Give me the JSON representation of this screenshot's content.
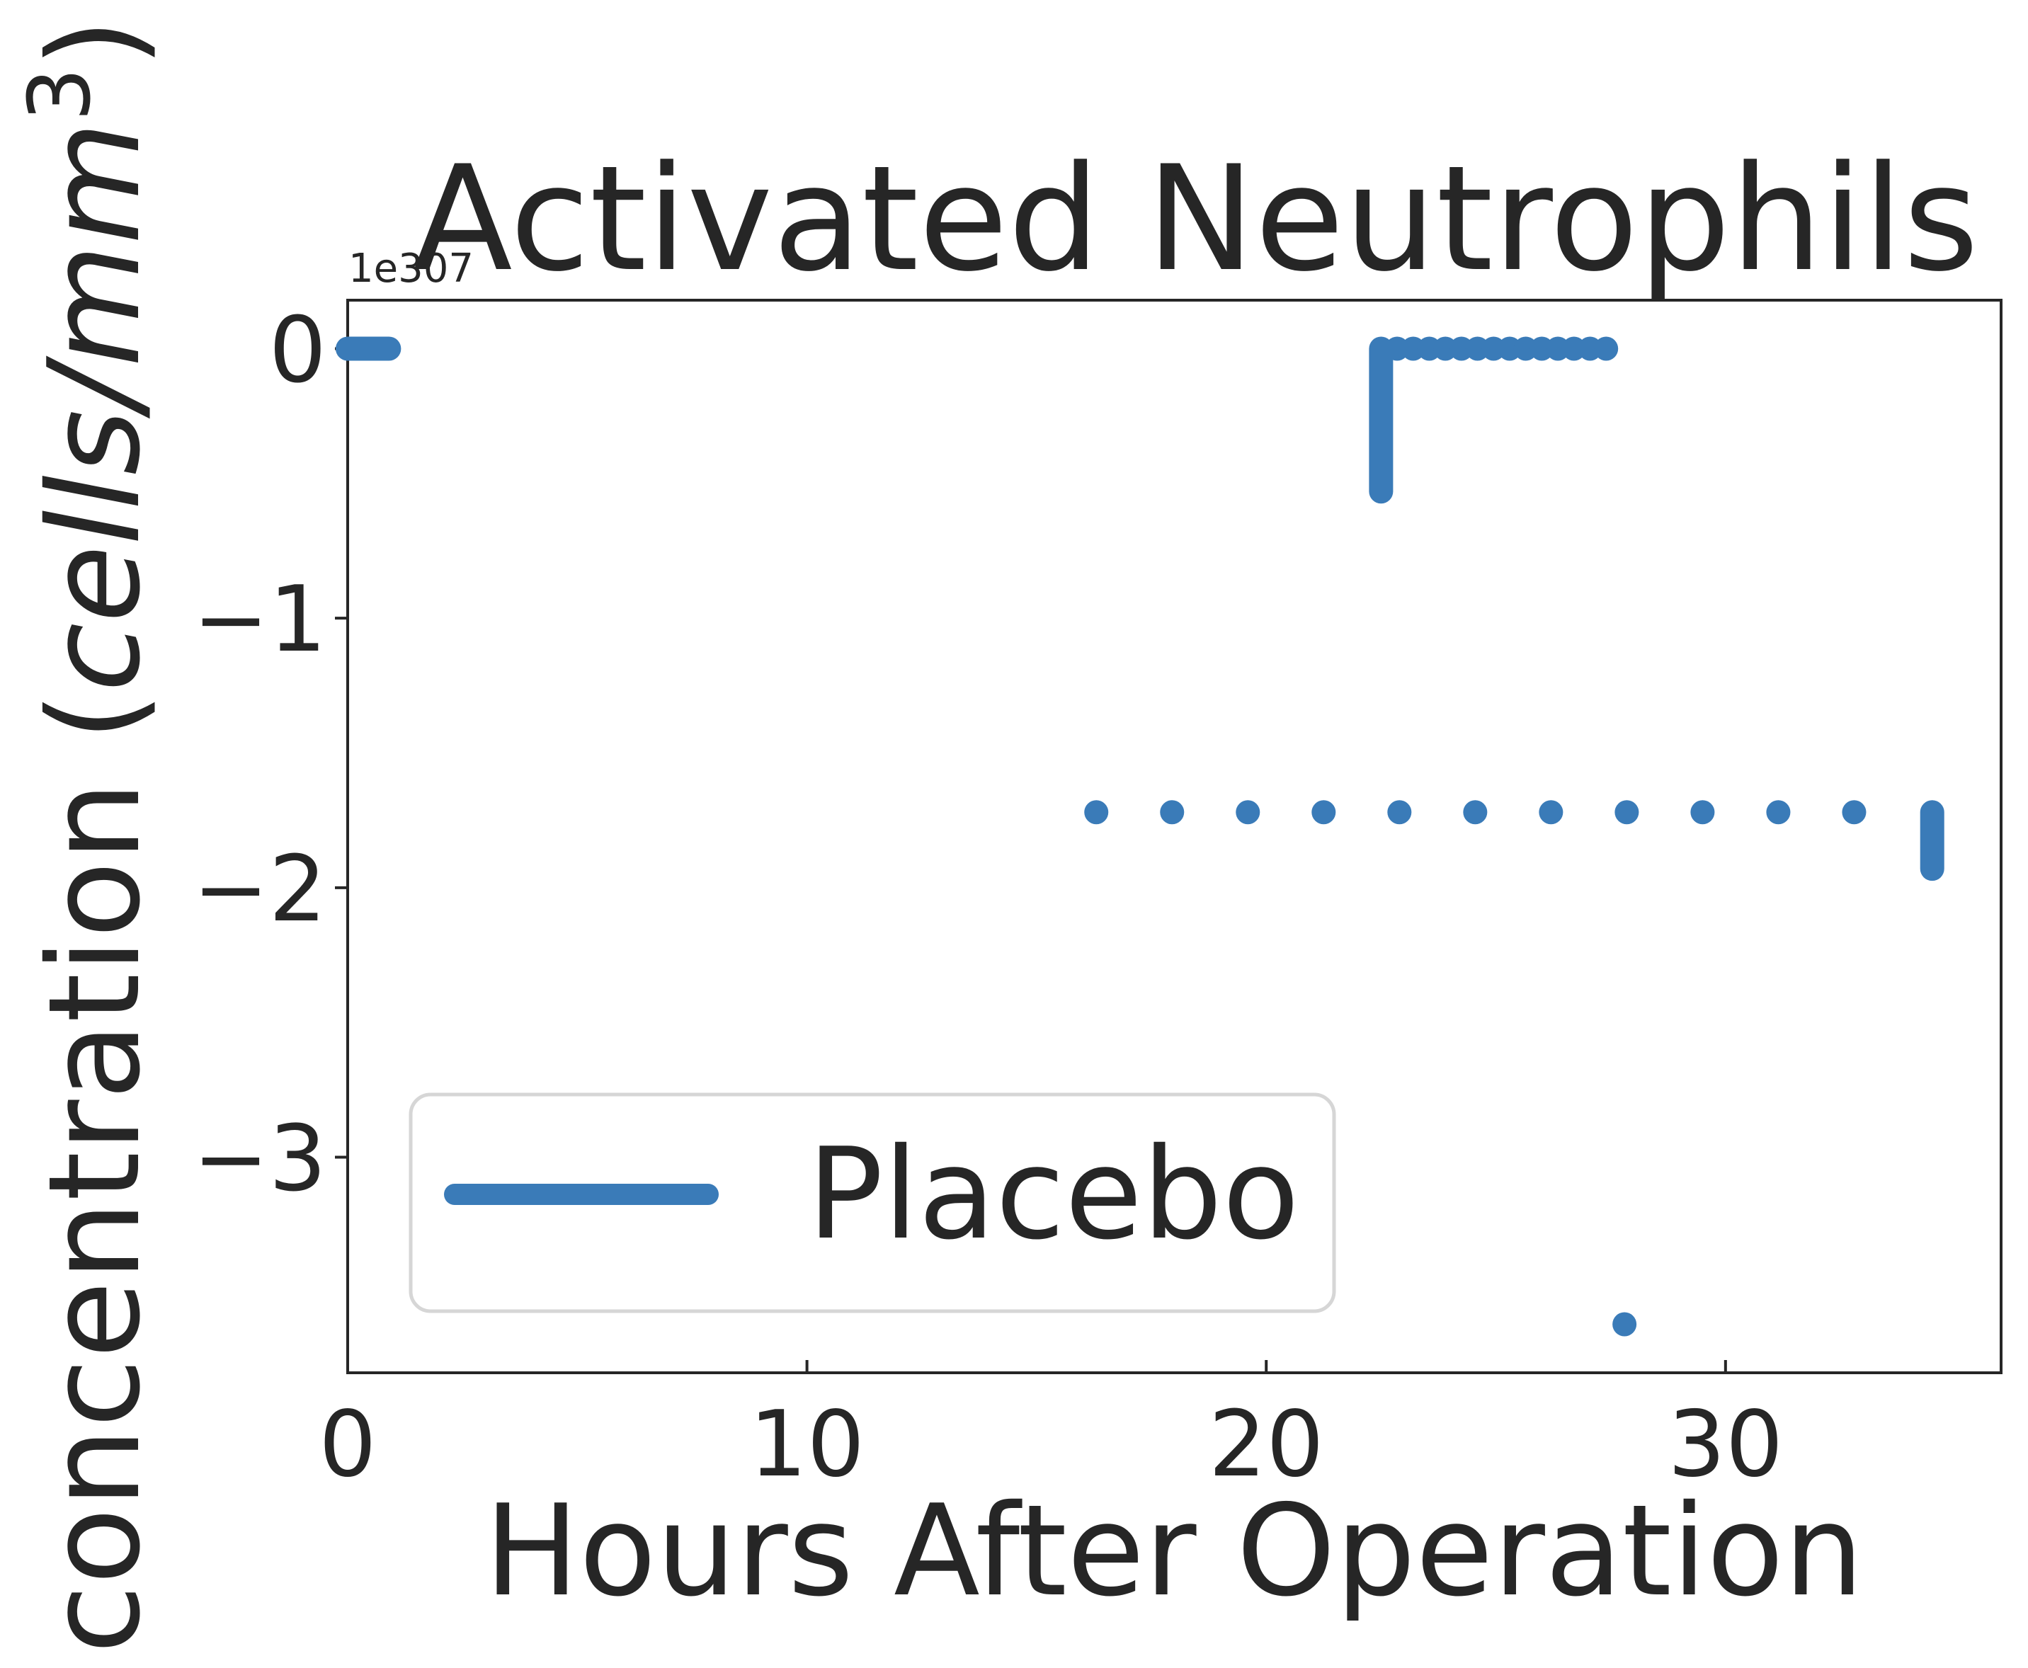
{
  "chart_data": {
    "type": "scatter",
    "title": "Activated Neutrophils",
    "xlabel": "Hours After Operation",
    "ylabel_main": "concentration (",
    "ylabel_unit_italic": "cells/mm",
    "ylabel_exponent": "3",
    "ylabel_close": ")",
    "offset_text": "1e307",
    "xlim": [
      0,
      36
    ],
    "ylim": [
      -3.8,
      0.18
    ],
    "xticks": [
      0,
      10,
      20,
      30
    ],
    "xtick_labels": [
      "0",
      "10",
      "20",
      "30"
    ],
    "yticks": [
      0,
      -1,
      -2,
      -3
    ],
    "ytick_labels": [
      "0",
      "−1",
      "−2",
      "−3"
    ],
    "grid": false,
    "legend_position": "lower-left",
    "series": [
      {
        "name": "Placebo",
        "color": "#3a7bb8",
        "segments": [
          {
            "kind": "run",
            "x": [
              0,
              0.9
            ],
            "y": 0
          },
          {
            "kind": "vrun",
            "x": 22.5,
            "y": [
              -0.53,
              0
            ]
          },
          {
            "kind": "vrun",
            "x": 34.5,
            "y": [
              -1.72,
              -1.93
            ]
          }
        ],
        "points": [
          {
            "x": 22.85,
            "y": 0
          },
          {
            "x": 23.2,
            "y": 0
          },
          {
            "x": 23.55,
            "y": 0
          },
          {
            "x": 23.9,
            "y": 0
          },
          {
            "x": 24.25,
            "y": 0
          },
          {
            "x": 24.6,
            "y": 0
          },
          {
            "x": 24.95,
            "y": 0
          },
          {
            "x": 25.3,
            "y": 0
          },
          {
            "x": 25.65,
            "y": 0
          },
          {
            "x": 26.0,
            "y": 0
          },
          {
            "x": 26.35,
            "y": 0
          },
          {
            "x": 26.7,
            "y": 0
          },
          {
            "x": 27.05,
            "y": 0
          },
          {
            "x": 27.4,
            "y": 0
          },
          {
            "x": 16.3,
            "y": -1.72
          },
          {
            "x": 17.95,
            "y": -1.72
          },
          {
            "x": 19.6,
            "y": -1.72
          },
          {
            "x": 21.25,
            "y": -1.72
          },
          {
            "x": 22.9,
            "y": -1.72
          },
          {
            "x": 24.55,
            "y": -1.72
          },
          {
            "x": 26.2,
            "y": -1.72
          },
          {
            "x": 27.85,
            "y": -1.72
          },
          {
            "x": 29.5,
            "y": -1.72
          },
          {
            "x": 31.15,
            "y": -1.72
          },
          {
            "x": 32.8,
            "y": -1.72
          },
          {
            "x": 27.8,
            "y": -3.62
          }
        ]
      }
    ]
  }
}
